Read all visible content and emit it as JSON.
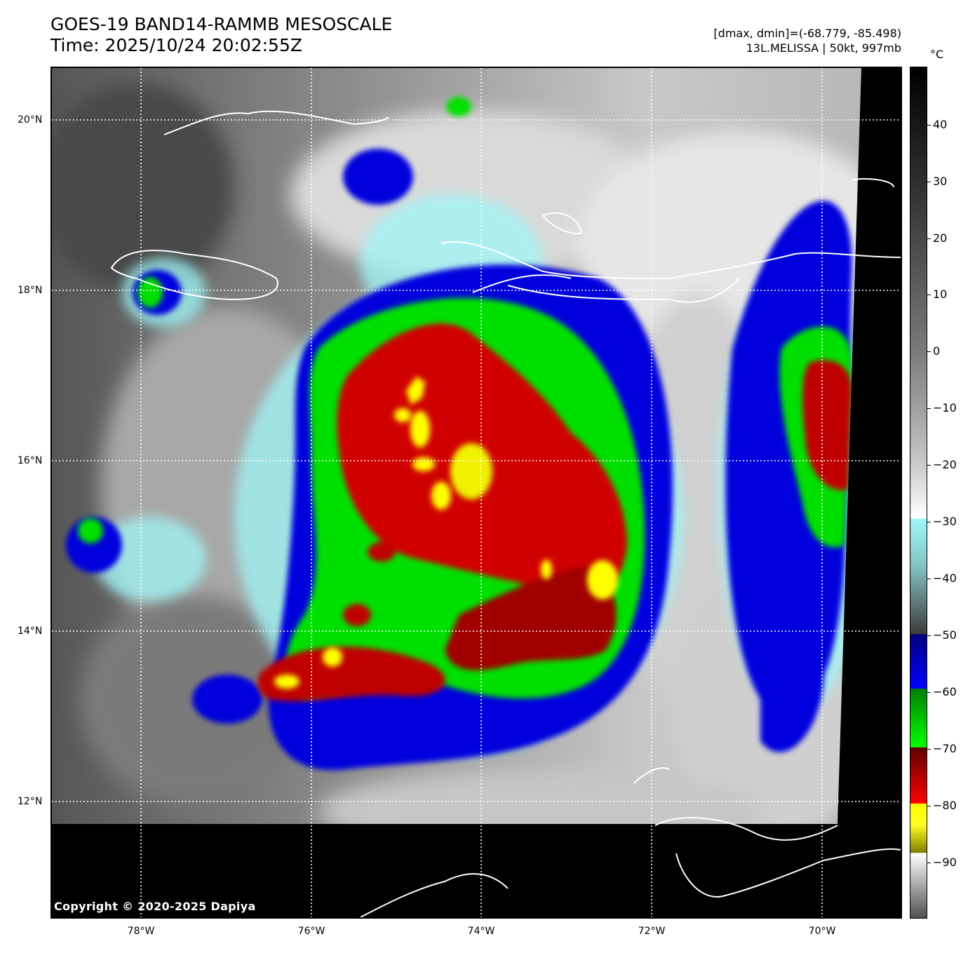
{
  "header": {
    "title_line1": "GOES-19 BAND14-RAMMB MESOSCALE",
    "title_line2": "Time: 2025/10/24 20:02:55Z",
    "info_line1": "[dmax, dmin]=(-68.779, -85.498)",
    "info_line2": "13L.MELISSA | 50kt, 997mb"
  },
  "map": {
    "copyright": "Copyright © 2020-2025 Dapiya",
    "lat_labels": [
      "20°N",
      "18°N",
      "16°N",
      "14°N",
      "12°N"
    ],
    "lon_labels": [
      "78°W",
      "76°W",
      "74°W",
      "72°W",
      "70°W"
    ],
    "lat_values": [
      20,
      18,
      16,
      14,
      12
    ],
    "lon_values": [
      -78,
      -76,
      -74,
      -72,
      -70
    ],
    "gridlines": true,
    "storm_name": "MELISSA",
    "land_outline_color": "#ffffff"
  },
  "colorbar": {
    "unit": "°C",
    "labels": [
      "40",
      "30",
      "20",
      "10",
      "0",
      "−10",
      "−20",
      "−30",
      "−40",
      "−50",
      "−60",
      "−70",
      "−80",
      "−90"
    ],
    "values": [
      40,
      30,
      20,
      10,
      0,
      -10,
      -20,
      -30,
      -40,
      -50,
      -60,
      -70,
      -80,
      -90
    ],
    "range": [
      -100,
      50
    ]
  }
}
